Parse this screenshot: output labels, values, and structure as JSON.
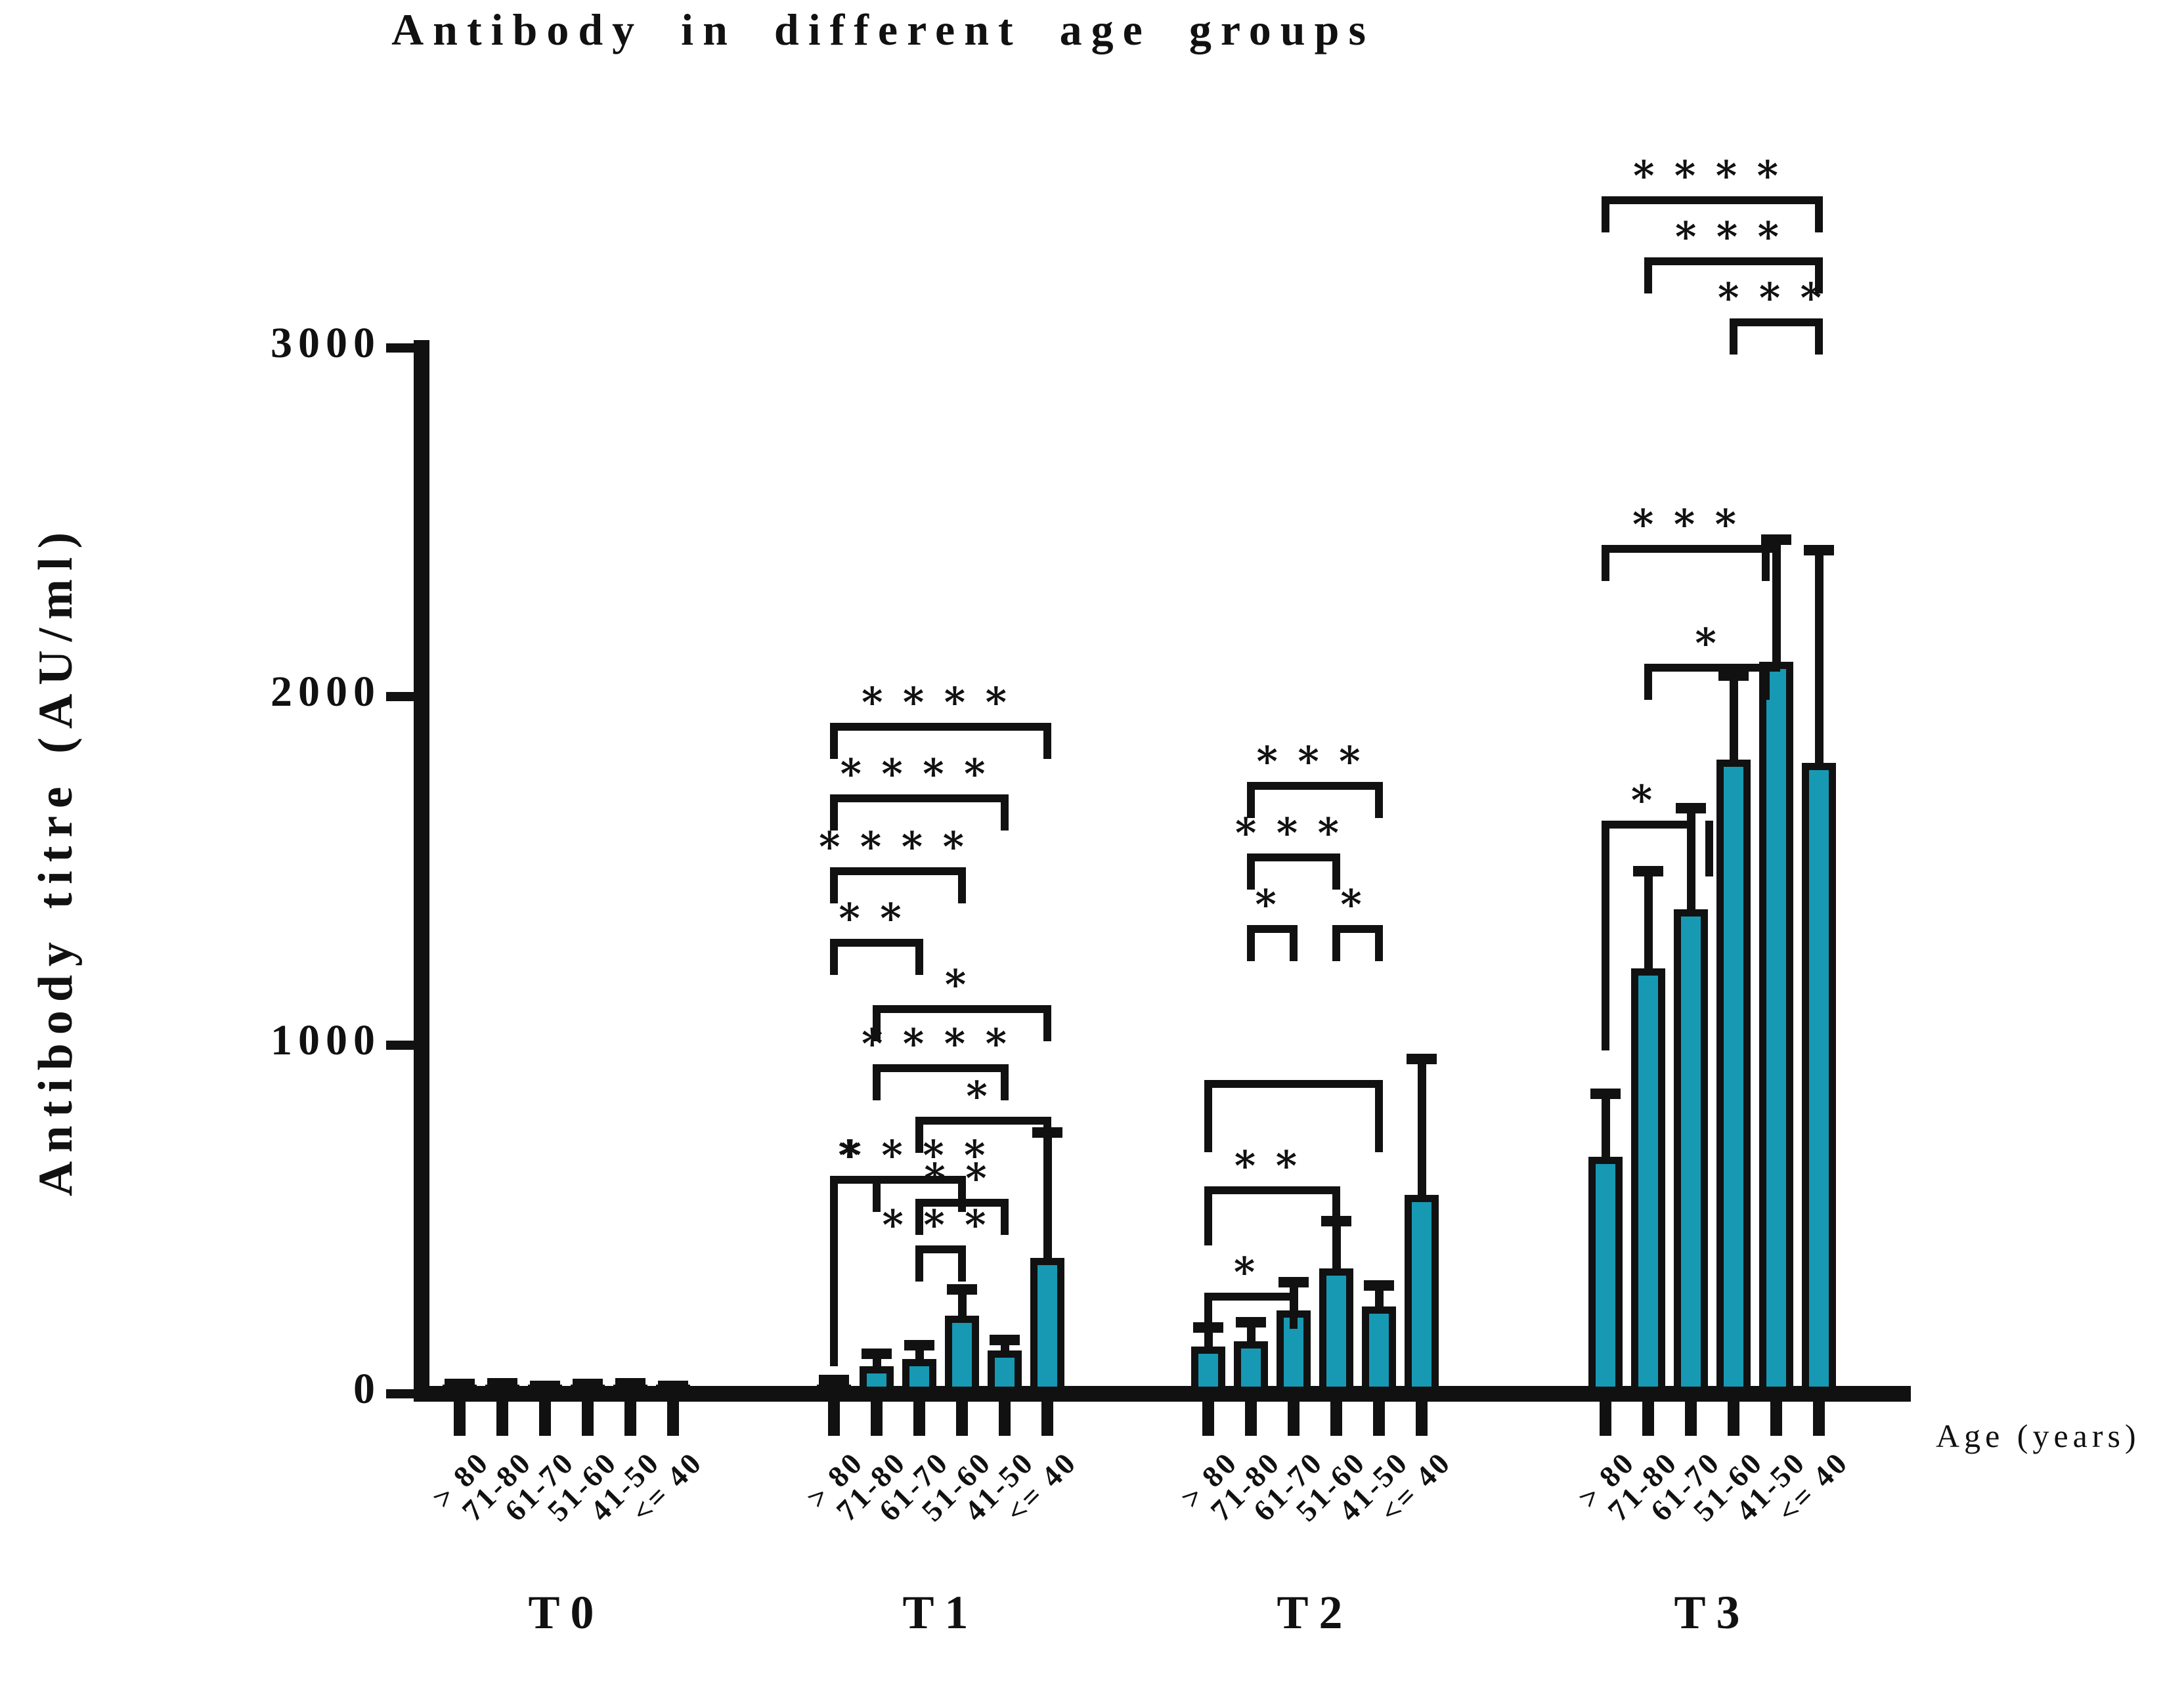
{
  "chart_data": {
    "type": "bar",
    "title": "Antibody in different age groups",
    "ylabel": "Antibody titre (AU/ml)",
    "xlabel": "Age (years)",
    "ylim": [
      0,
      3000
    ],
    "yticks": [
      0,
      1000,
      2000,
      3000
    ],
    "bar_color": "#1799B4",
    "axis_color": "#111111",
    "age_labels": [
      "> 80",
      "71-80",
      "61-70",
      "51-60",
      "41-50",
      "<= 40"
    ],
    "groups": [
      {
        "label": "T0",
        "values": [
          18,
          20,
          14,
          18,
          20,
          14
        ],
        "errors_top": [
          28,
          30,
          22,
          28,
          30,
          22
        ]
      },
      {
        "label": "T1",
        "values": [
          25,
          80,
          100,
          225,
          125,
          390
        ],
        "errors_top": [
          40,
          115,
          140,
          300,
          155,
          750
        ]
      },
      {
        "label": "T2",
        "values": [
          135,
          150,
          240,
          360,
          250,
          570
        ],
        "errors_top": [
          190,
          205,
          320,
          495,
          310,
          960
        ]
      },
      {
        "label": "T3",
        "values": [
          680,
          1220,
          1390,
          1820,
          2100,
          1810
        ],
        "errors_top": [
          860,
          1500,
          1680,
          2060,
          2450,
          2420
        ]
      }
    ],
    "significance": [
      {
        "group": 1,
        "from": 0,
        "to": 5,
        "label": "****",
        "y": 1925
      },
      {
        "group": 1,
        "from": 0,
        "to": 4,
        "label": "****",
        "y": 1720
      },
      {
        "group": 1,
        "from": 0,
        "to": 3,
        "label": "****",
        "y": 1510
      },
      {
        "group": 1,
        "from": 0,
        "to": 2,
        "label": "**",
        "y": 1305
      },
      {
        "group": 1,
        "from": 1,
        "to": 5,
        "label": "*",
        "y": 1115
      },
      {
        "group": 1,
        "from": 1,
        "to": 4,
        "label": "****",
        "y": 945
      },
      {
        "group": 1,
        "from": 2,
        "to": 5,
        "label": "*",
        "y": 795
      },
      {
        "group": 1,
        "from": 0,
        "to": 1,
        "label": "*",
        "y": 625,
        "leg_left": 290
      },
      {
        "group": 1,
        "from": 1,
        "to": 3,
        "label": "****",
        "y": 625
      },
      {
        "group": 1,
        "from": 2,
        "to": 4,
        "label": "**",
        "y": 560
      },
      {
        "group": 1,
        "from": 2,
        "to": 3,
        "label": "***",
        "y": 425
      },
      {
        "group": 2,
        "from": 1,
        "to": 4,
        "label": "***",
        "y": 1755
      },
      {
        "group": 2,
        "from": 1,
        "to": 3,
        "label": "***",
        "y": 1550
      },
      {
        "group": 2,
        "from": 1,
        "to": 2,
        "label": "*",
        "y": 1345
      },
      {
        "group": 2,
        "from": 3,
        "to": 4,
        "label": "*",
        "y": 1345
      },
      {
        "group": 2,
        "from": 0,
        "to": 4,
        "label": "",
        "y": 900,
        "leg_left": 110,
        "leg_right": 110
      },
      {
        "group": 2,
        "from": 0,
        "to": 3,
        "label": "**",
        "y": 595,
        "leg_left": 90
      },
      {
        "group": 2,
        "from": 0,
        "to": 2,
        "label": "*",
        "y": 290,
        "leg_left": 50
      },
      {
        "group": 3,
        "from": 0,
        "to": 5,
        "label": "****",
        "y": 3435
      },
      {
        "group": 3,
        "from": 1,
        "to": 5,
        "label": "***",
        "y": 3260
      },
      {
        "group": 3,
        "from": 3,
        "to": 5,
        "label": "***",
        "y": 3085
      },
      {
        "group": 3,
        "from": 0,
        "to": 4,
        "label": "***",
        "y": 2435,
        "xoff_right": -16
      },
      {
        "group": 3,
        "from": 1,
        "to": 4,
        "label": "*",
        "y": 2095,
        "xoff_right": -16
      },
      {
        "group": 3,
        "from": 0,
        "to": 2,
        "label": "*",
        "y": 1645,
        "leg_left": 350,
        "leg_right": 85,
        "xoff_right": 28
      }
    ]
  }
}
